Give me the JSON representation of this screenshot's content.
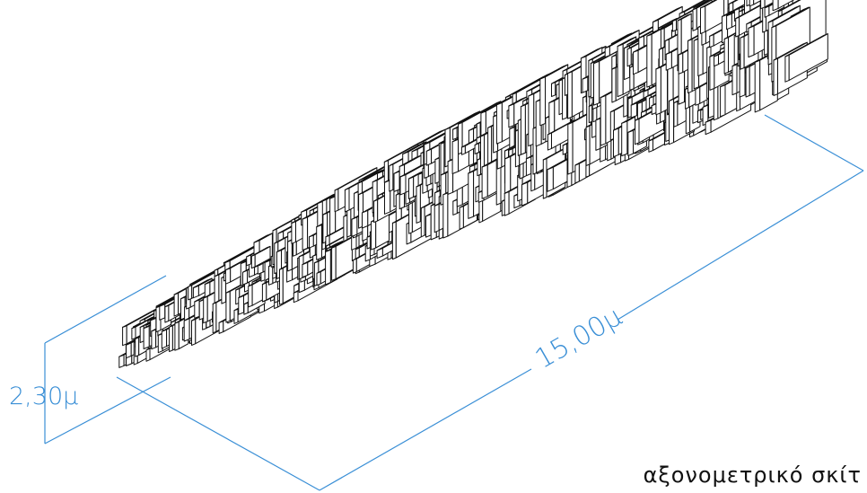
{
  "drawing": {
    "line_color": "#3a8fd6",
    "structure_color": "#111111",
    "height_dimension": "2,30μ",
    "length_dimension": "15,00μ",
    "caption": "αξονομετρικό σκίτ"
  }
}
